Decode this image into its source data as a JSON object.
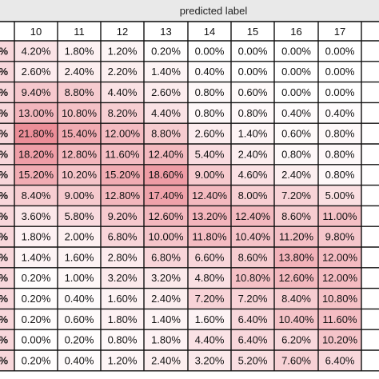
{
  "chart_data": {
    "type": "heatmap",
    "xlabel": "predicted label",
    "columns": [
      "",
      "10",
      "11",
      "12",
      "13",
      "14",
      "15",
      "16",
      "17",
      ""
    ],
    "rows": [
      [
        "%",
        "4.20%",
        "1.80%",
        "1.20%",
        "0.20%",
        "0.00%",
        "0.00%",
        "0.00%",
        "0.00%",
        ""
      ],
      [
        "%",
        "2.60%",
        "2.40%",
        "2.20%",
        "1.40%",
        "0.40%",
        "0.00%",
        "0.00%",
        "0.00%",
        ""
      ],
      [
        "%",
        "9.40%",
        "8.80%",
        "4.40%",
        "2.60%",
        "0.80%",
        "0.60%",
        "0.00%",
        "0.00%",
        ""
      ],
      [
        "%",
        "13.00%",
        "10.80%",
        "8.20%",
        "4.40%",
        "0.80%",
        "0.80%",
        "0.40%",
        "0.40%",
        ""
      ],
      [
        "%",
        "21.80%",
        "15.40%",
        "12.00%",
        "8.80%",
        "2.60%",
        "1.40%",
        "0.60%",
        "0.80%",
        ""
      ],
      [
        "%",
        "18.20%",
        "12.80%",
        "11.60%",
        "12.40%",
        "5.40%",
        "2.40%",
        "0.80%",
        "0.80%",
        ""
      ],
      [
        "%",
        "15.20%",
        "10.20%",
        "15.20%",
        "18.60%",
        "9.00%",
        "4.60%",
        "2.40%",
        "0.80%",
        ""
      ],
      [
        "%",
        "8.40%",
        "9.00%",
        "12.80%",
        "17.40%",
        "12.40%",
        "8.00%",
        "7.20%",
        "5.00%",
        ""
      ],
      [
        "%",
        "3.60%",
        "5.80%",
        "9.20%",
        "12.60%",
        "13.20%",
        "12.40%",
        "8.60%",
        "11.00%",
        ""
      ],
      [
        "%",
        "1.80%",
        "2.00%",
        "6.80%",
        "10.00%",
        "11.80%",
        "10.40%",
        "11.20%",
        "9.80%",
        ""
      ],
      [
        "%",
        "1.40%",
        "1.60%",
        "2.80%",
        "6.80%",
        "6.60%",
        "8.60%",
        "13.80%",
        "12.00%",
        ""
      ],
      [
        "%",
        "0.20%",
        "1.00%",
        "3.20%",
        "3.20%",
        "4.80%",
        "10.80%",
        "12.60%",
        "12.00%",
        ""
      ],
      [
        "%",
        "0.20%",
        "0.40%",
        "1.60%",
        "2.40%",
        "7.20%",
        "7.20%",
        "8.40%",
        "10.80%",
        ""
      ],
      [
        "%",
        "0.20%",
        "0.60%",
        "1.80%",
        "1.40%",
        "1.60%",
        "6.40%",
        "10.40%",
        "11.60%",
        ""
      ],
      [
        "%",
        "0.00%",
        "0.20%",
        "0.80%",
        "1.80%",
        "4.40%",
        "6.40%",
        "6.20%",
        "10.20%",
        ""
      ],
      [
        "%",
        "0.20%",
        "0.40%",
        "1.20%",
        "2.40%",
        "3.20%",
        "5.20%",
        "7.60%",
        "6.40%",
        ""
      ]
    ],
    "color_scale": {
      "low": "#ffffff",
      "high": "#ec8e98",
      "max_value": 21.8
    },
    "grid": true
  }
}
